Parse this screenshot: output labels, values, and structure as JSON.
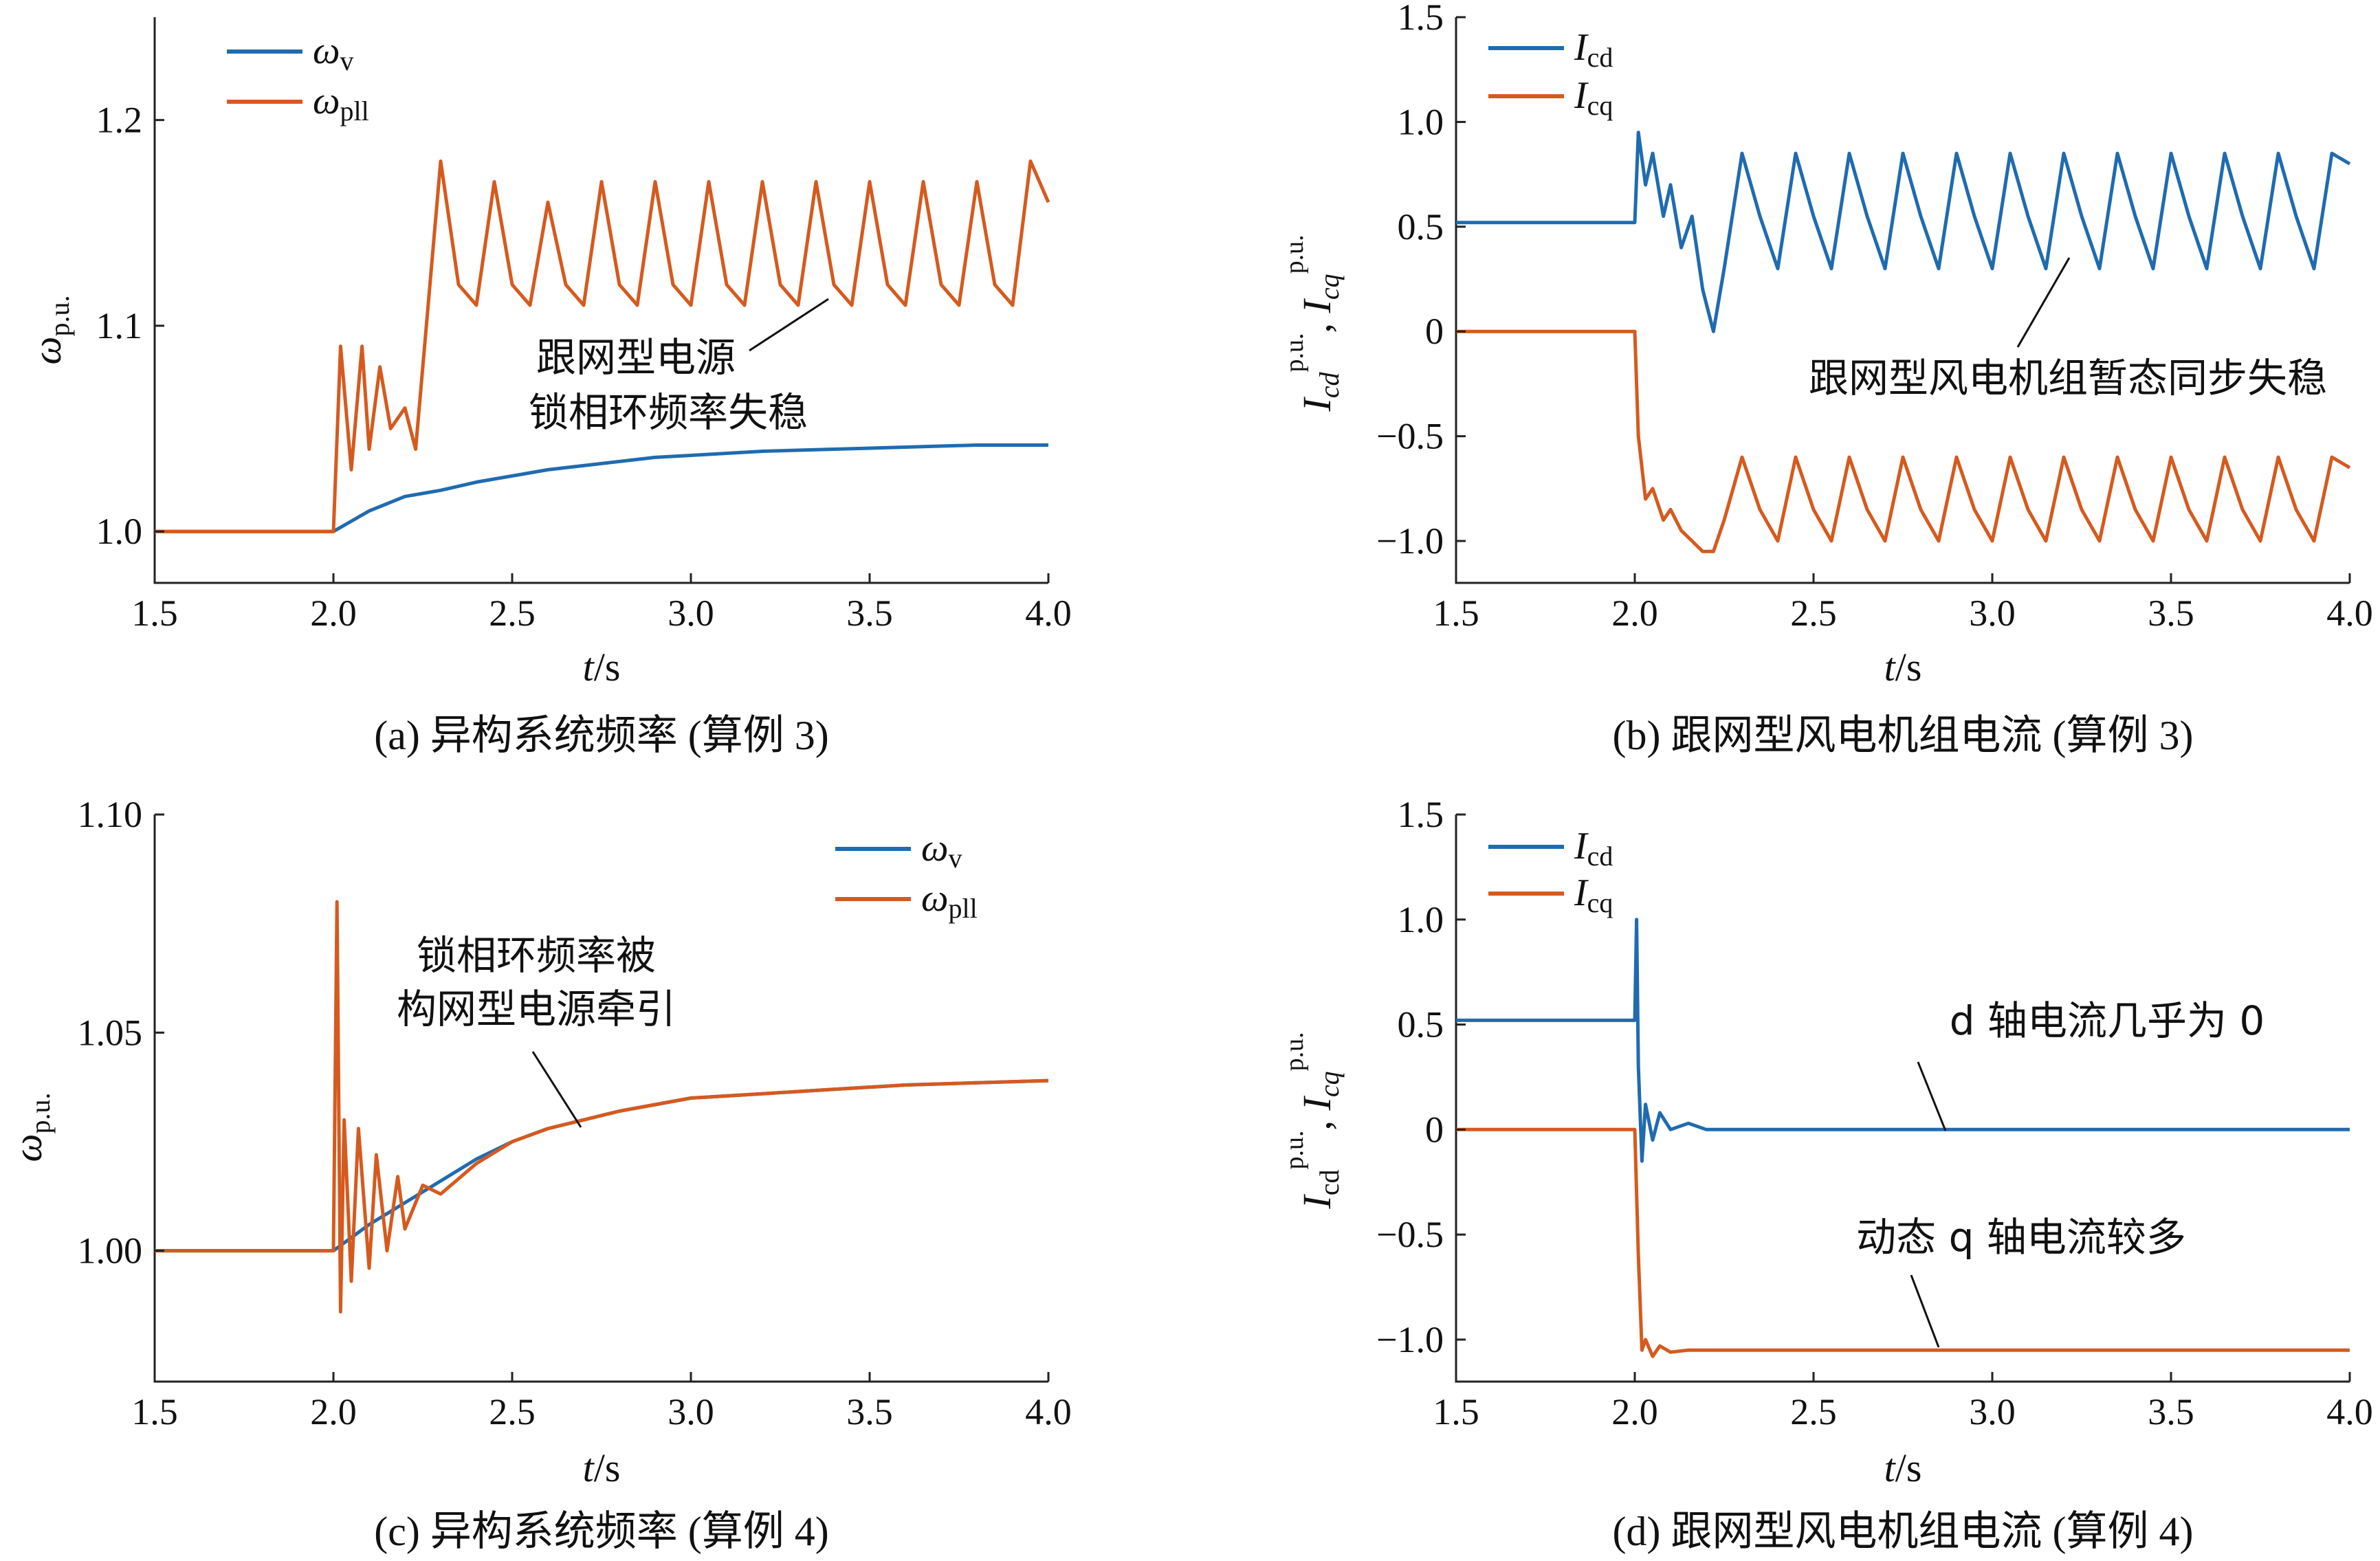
{
  "colors": {
    "blue": "#1f6bb0",
    "orange": "#d55a1e",
    "axis": "#222222"
  },
  "chart_data": [
    {
      "id": "a",
      "type": "line",
      "caption": "(a)  异构系统频率 (算例 3)",
      "xlabel": "t/s",
      "ylabel": "ω",
      "ylabel_sub": "p.u.",
      "xlim": [
        1.5,
        4.0
      ],
      "ylim": [
        0.975,
        1.25
      ],
      "xticks": [
        "1.5",
        "2.0",
        "2.5",
        "3.0",
        "3.5",
        "4.0"
      ],
      "xtick_values": [
        1.5,
        2.0,
        2.5,
        3.0,
        3.5,
        4.0
      ],
      "yticks": [
        "1.0",
        "1.1",
        "1.2"
      ],
      "ytick_values": [
        1.0,
        1.1,
        1.2
      ],
      "legend_position": "top-left",
      "series": [
        {
          "name": "ω",
          "name_sub": "v",
          "color_key": "blue",
          "x": [
            1.5,
            2.0,
            2.1,
            2.2,
            2.3,
            2.4,
            2.5,
            2.6,
            2.7,
            2.8,
            2.9,
            3.0,
            3.2,
            3.4,
            3.6,
            3.8,
            4.0
          ],
          "y": [
            1.0,
            1.0,
            1.01,
            1.017,
            1.02,
            1.024,
            1.027,
            1.03,
            1.032,
            1.034,
            1.036,
            1.037,
            1.039,
            1.04,
            1.041,
            1.042,
            1.042
          ]
        },
        {
          "name": "ω",
          "name_sub": "pll",
          "color_key": "orange",
          "x": [
            1.5,
            2.0,
            2.02,
            2.05,
            2.08,
            2.1,
            2.13,
            2.16,
            2.2,
            2.23,
            2.26,
            2.3,
            2.35,
            2.4,
            2.45,
            2.5,
            2.55,
            2.6,
            2.65,
            2.7,
            2.75,
            2.8,
            2.85,
            2.9,
            2.95,
            3.0,
            3.05,
            3.1,
            3.15,
            3.2,
            3.25,
            3.3,
            3.35,
            3.4,
            3.45,
            3.5,
            3.55,
            3.6,
            3.65,
            3.7,
            3.75,
            3.8,
            3.85,
            3.9,
            3.95,
            4.0
          ],
          "y": [
            1.0,
            1.0,
            1.09,
            1.03,
            1.09,
            1.04,
            1.08,
            1.05,
            1.06,
            1.04,
            1.1,
            1.18,
            1.12,
            1.11,
            1.17,
            1.12,
            1.11,
            1.16,
            1.12,
            1.11,
            1.17,
            1.12,
            1.11,
            1.17,
            1.12,
            1.11,
            1.17,
            1.12,
            1.11,
            1.17,
            1.12,
            1.11,
            1.17,
            1.12,
            1.11,
            1.17,
            1.12,
            1.11,
            1.17,
            1.12,
            1.11,
            1.17,
            1.12,
            1.11,
            1.18,
            1.16
          ]
        }
      ],
      "annotation": {
        "lines": [
          "跟网型电源",
          "锁相环频率失稳"
        ],
        "target": [
          3.2,
          1.115
        ]
      }
    },
    {
      "id": "b",
      "type": "line",
      "caption": "(b)  跟网型风电机组电流 (算例 3)",
      "xlabel": "t/s",
      "ylabel": "I",
      "xlim": [
        1.5,
        4.0
      ],
      "ylim": [
        -1.2,
        1.5
      ],
      "xticks": [
        "1.5",
        "2.0",
        "2.5",
        "3.0",
        "3.5",
        "4.0"
      ],
      "xtick_values": [
        1.5,
        2.0,
        2.5,
        3.0,
        3.5,
        4.0
      ],
      "yticks": [
        "−1.0",
        "−0.5",
        "0",
        "0.5",
        "1.0",
        "1.5"
      ],
      "ytick_values": [
        -1.0,
        -0.5,
        0,
        0.5,
        1.0,
        1.5
      ],
      "legend_position": "top-left",
      "series": [
        {
          "name": "I",
          "name_sub": "cd",
          "color_key": "blue",
          "x": [
            1.5,
            2.0,
            2.01,
            2.03,
            2.05,
            2.08,
            2.1,
            2.13,
            2.16,
            2.19,
            2.22,
            2.25,
            2.3,
            2.35,
            2.4,
            2.45,
            2.5,
            2.55,
            2.6,
            2.65,
            2.7,
            2.75,
            2.8,
            2.85,
            2.9,
            2.95,
            3.0,
            3.05,
            3.1,
            3.15,
            3.2,
            3.25,
            3.3,
            3.35,
            3.4,
            3.45,
            3.5,
            3.55,
            3.6,
            3.65,
            3.7,
            3.75,
            3.8,
            3.85,
            3.9,
            3.95,
            4.0
          ],
          "y": [
            0.52,
            0.52,
            0.95,
            0.7,
            0.85,
            0.55,
            0.7,
            0.4,
            0.55,
            0.2,
            0.0,
            0.3,
            0.85,
            0.55,
            0.3,
            0.85,
            0.55,
            0.3,
            0.85,
            0.55,
            0.3,
            0.85,
            0.55,
            0.3,
            0.85,
            0.55,
            0.3,
            0.85,
            0.55,
            0.3,
            0.85,
            0.55,
            0.3,
            0.85,
            0.55,
            0.3,
            0.85,
            0.55,
            0.3,
            0.85,
            0.55,
            0.3,
            0.85,
            0.55,
            0.3,
            0.85,
            0.8
          ]
        },
        {
          "name": "I",
          "name_sub": "cq",
          "color_key": "orange",
          "x": [
            1.5,
            2.0,
            2.01,
            2.03,
            2.05,
            2.08,
            2.1,
            2.13,
            2.16,
            2.19,
            2.22,
            2.25,
            2.3,
            2.35,
            2.4,
            2.45,
            2.5,
            2.55,
            2.6,
            2.65,
            2.7,
            2.75,
            2.8,
            2.85,
            2.9,
            2.95,
            3.0,
            3.05,
            3.1,
            3.15,
            3.2,
            3.25,
            3.3,
            3.35,
            3.4,
            3.45,
            3.5,
            3.55,
            3.6,
            3.65,
            3.7,
            3.75,
            3.8,
            3.85,
            3.9,
            3.95,
            4.0
          ],
          "y": [
            0.0,
            0.0,
            -0.5,
            -0.8,
            -0.75,
            -0.9,
            -0.85,
            -0.95,
            -1.0,
            -1.05,
            -1.05,
            -0.9,
            -0.6,
            -0.85,
            -1.0,
            -0.6,
            -0.85,
            -1.0,
            -0.6,
            -0.85,
            -1.0,
            -0.6,
            -0.85,
            -1.0,
            -0.6,
            -0.85,
            -1.0,
            -0.6,
            -0.85,
            -1.0,
            -0.6,
            -0.85,
            -1.0,
            -0.6,
            -0.85,
            -1.0,
            -0.6,
            -0.85,
            -1.0,
            -0.6,
            -0.85,
            -1.0,
            -0.6,
            -0.85,
            -1.0,
            -0.6,
            -0.65
          ]
        }
      ],
      "annotation": {
        "lines": [
          "跟网型风电机组暂态同步失稳"
        ],
        "target": [
          3.25,
          0.4
        ]
      }
    },
    {
      "id": "c",
      "type": "line",
      "caption": "(c)  异构系统频率 (算例 4)",
      "xlabel": "t/s",
      "ylabel": "ω",
      "ylabel_sub": "p.u.",
      "xlim": [
        1.5,
        4.0
      ],
      "ylim": [
        0.97,
        1.1
      ],
      "xticks": [
        "1.5",
        "2.0",
        "2.5",
        "3.0",
        "3.5",
        "4.0"
      ],
      "xtick_values": [
        1.5,
        2.0,
        2.5,
        3.0,
        3.5,
        4.0
      ],
      "yticks": [
        "1.00",
        "1.05",
        "1.10"
      ],
      "ytick_values": [
        1.0,
        1.05,
        1.1
      ],
      "legend_position": "top-right",
      "series": [
        {
          "name": "ω",
          "name_sub": "v",
          "color_key": "blue",
          "x": [
            1.5,
            2.0,
            2.1,
            2.2,
            2.3,
            2.4,
            2.5,
            2.6,
            2.8,
            3.0,
            3.2,
            3.4,
            3.6,
            3.8,
            4.0
          ],
          "y": [
            1.0,
            1.0,
            1.006,
            1.011,
            1.016,
            1.021,
            1.025,
            1.028,
            1.032,
            1.035,
            1.036,
            1.037,
            1.038,
            1.0385,
            1.039
          ]
        },
        {
          "name": "ω",
          "name_sub": "pll",
          "color_key": "orange",
          "x": [
            1.5,
            2.0,
            2.01,
            2.02,
            2.03,
            2.05,
            2.07,
            2.1,
            2.12,
            2.15,
            2.18,
            2.2,
            2.25,
            2.3,
            2.4,
            2.5,
            2.6,
            2.8,
            3.0,
            3.2,
            3.4,
            3.6,
            3.8,
            4.0
          ],
          "y": [
            1.0,
            1.0,
            1.08,
            0.986,
            1.03,
            0.993,
            1.028,
            0.996,
            1.022,
            1.0,
            1.017,
            1.005,
            1.015,
            1.013,
            1.02,
            1.025,
            1.028,
            1.032,
            1.035,
            1.036,
            1.037,
            1.038,
            1.0385,
            1.039
          ]
        }
      ],
      "annotation": {
        "lines": [
          "锁相环频率被",
          "构网型电源牵引"
        ],
        "target": [
          2.7,
          1.03
        ]
      }
    },
    {
      "id": "d",
      "type": "line",
      "caption": "(d)  跟网型风电机组电流 (算例 4)",
      "xlabel": "t/s",
      "ylabel": "I",
      "xlim": [
        1.5,
        4.0
      ],
      "ylim": [
        -1.2,
        1.5
      ],
      "xticks": [
        "1.5",
        "2.0",
        "2.5",
        "3.0",
        "3.5",
        "4.0"
      ],
      "xtick_values": [
        1.5,
        2.0,
        2.5,
        3.0,
        3.5,
        4.0
      ],
      "yticks": [
        "−1.0",
        "−0.5",
        "0",
        "0.5",
        "1.0",
        "1.5"
      ],
      "ytick_values": [
        -1.0,
        -0.5,
        0,
        0.5,
        1.0,
        1.5
      ],
      "legend_position": "top-left",
      "series": [
        {
          "name": "I",
          "name_sub": "cd",
          "color_key": "blue",
          "x": [
            1.5,
            2.0,
            2.005,
            2.01,
            2.02,
            2.03,
            2.05,
            2.07,
            2.1,
            2.15,
            2.2,
            4.0
          ],
          "y": [
            0.52,
            0.52,
            1.0,
            0.3,
            -0.15,
            0.12,
            -0.05,
            0.08,
            0.0,
            0.03,
            0.0,
            0.0
          ]
        },
        {
          "name": "I",
          "name_sub": "cq",
          "color_key": "orange",
          "x": [
            1.5,
            2.0,
            2.01,
            2.02,
            2.03,
            2.05,
            2.07,
            2.1,
            2.15,
            2.2,
            4.0
          ],
          "y": [
            0.0,
            0.0,
            -0.6,
            -1.05,
            -1.0,
            -1.08,
            -1.03,
            -1.06,
            -1.05,
            -1.05,
            -1.05
          ]
        }
      ],
      "annotations": [
        {
          "lines": [
            "d 轴电流几乎为 0"
          ],
          "target": [
            2.85,
            0.0
          ]
        },
        {
          "lines": [
            "动态 q 轴电流较多"
          ],
          "target": [
            2.85,
            -1.05
          ]
        }
      ]
    }
  ]
}
